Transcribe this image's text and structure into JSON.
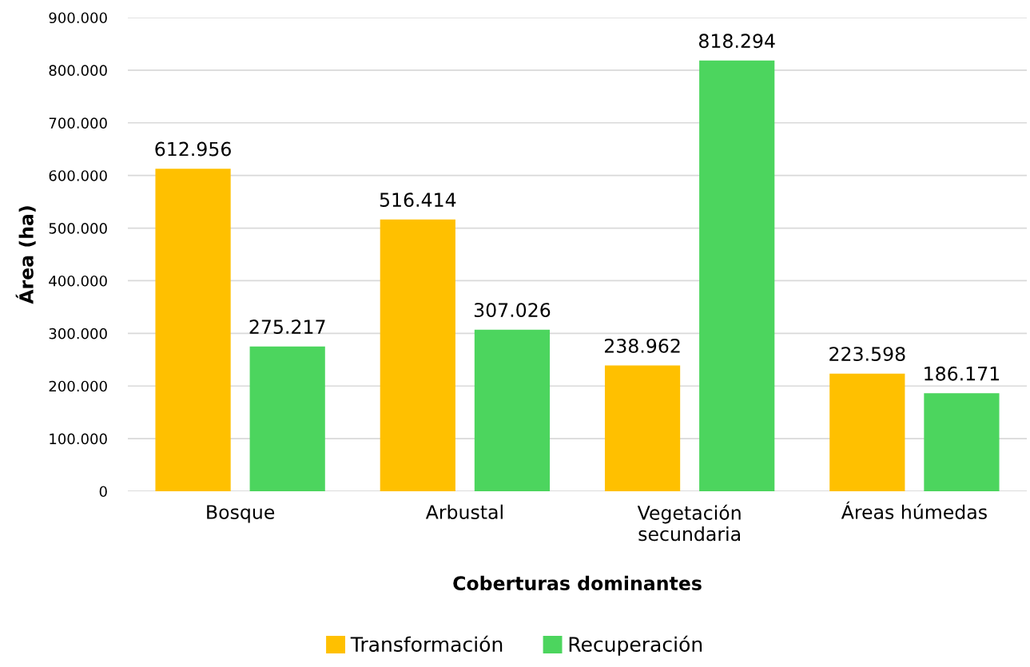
{
  "chart_data": {
    "type": "bar",
    "xlabel": "Coberturas dominantes",
    "ylabel": "Área (ha)",
    "categories": [
      "Bosque",
      "Arbustal",
      "Vegetación\nsecundaria",
      "Áreas húmedas"
    ],
    "series": [
      {
        "name": "Transformación",
        "color": "#ffc000",
        "values": [
          612956,
          516414,
          238962,
          223598
        ],
        "value_labels": [
          "612.956",
          "516.414",
          "238.962",
          "223.598"
        ]
      },
      {
        "name": "Recuperación",
        "color": "#4cd55e",
        "values": [
          275217,
          307026,
          818294,
          186171
        ],
        "value_labels": [
          "275.217",
          "307.026",
          "818.294",
          "186.171"
        ]
      }
    ],
    "ylim": [
      0,
      900000
    ],
    "yticks": [
      {
        "value": 0,
        "label": "0"
      },
      {
        "value": 100000,
        "label": "100.000"
      },
      {
        "value": 200000,
        "label": "200.000"
      },
      {
        "value": 300000,
        "label": "300.000"
      },
      {
        "value": 400000,
        "label": "400.000"
      },
      {
        "value": 500000,
        "label": "500.000"
      },
      {
        "value": 600000,
        "label": "600.000"
      },
      {
        "value": 700000,
        "label": "700.000"
      },
      {
        "value": 800000,
        "label": "800.000"
      },
      {
        "value": 900000,
        "label": "900.000"
      }
    ],
    "grid": "y",
    "legend": "bottom"
  }
}
